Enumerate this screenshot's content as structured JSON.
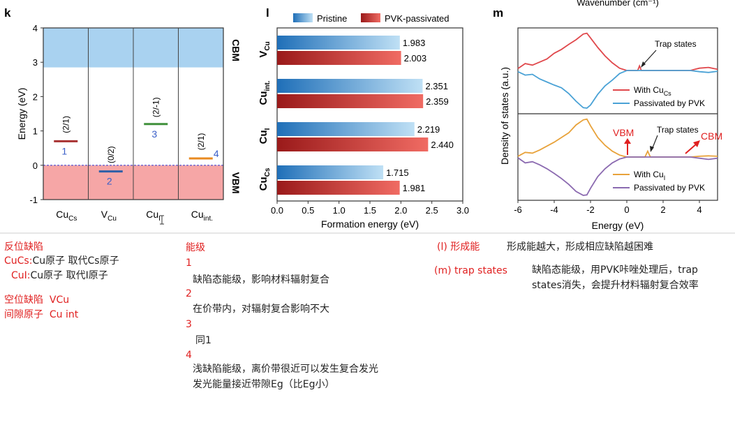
{
  "chart_data": [
    {
      "type": "energy-level-diagram",
      "panel_label": "k",
      "ylabel": "Energy (eV)",
      "ylim": [
        -1,
        4
      ],
      "yticks": [
        "-1",
        "0",
        "1",
        "2",
        "3",
        "4"
      ],
      "band_labels": {
        "cbm": "CBM",
        "vbm": "VBM"
      },
      "cbm_min": 2.85,
      "vbm_max": 0,
      "columns": [
        {
          "label_main": "Cu",
          "label_sub": "Cs",
          "level": 0.7,
          "transition": "(2/1)",
          "color": "#a83232",
          "annotation": "1"
        },
        {
          "label_main": "V",
          "label_sub": "Cu",
          "level": -0.18,
          "transition": "(0/2)",
          "color": "#2f5fa8",
          "annotation": "2"
        },
        {
          "label_main": "Cu",
          "label_sub": "I",
          "level": 1.2,
          "transition": "(2/-1)",
          "color": "#3f8f3a",
          "annotation": "3"
        },
        {
          "label_main": "Cu",
          "label_sub": "int.",
          "level": 0.2,
          "transition": "(2/1)",
          "color": "#e88a20",
          "annotation": "4"
        }
      ]
    },
    {
      "type": "bar",
      "panel_label": "l",
      "orientation": "horizontal",
      "xlabel": "Formation energy (eV)",
      "xlim": [
        0,
        3.0
      ],
      "xticks": [
        "0.0",
        "0.5",
        "1.0",
        "1.5",
        "2.0",
        "2.5",
        "3.0"
      ],
      "categories": [
        {
          "main": "V",
          "sub": "Cu"
        },
        {
          "main": "Cu",
          "sub": "int."
        },
        {
          "main": "Cu",
          "sub": "I"
        },
        {
          "main": "Cu",
          "sub": "Cs"
        }
      ],
      "series": [
        {
          "name": "Pristine",
          "values": [
            1.983,
            2.351,
            2.219,
            1.715
          ],
          "labels": [
            "1.983",
            "2.351",
            "2.219",
            "1.715"
          ],
          "color": "#3b8fd0"
        },
        {
          "name": "PVK-passivated",
          "values": [
            2.003,
            2.359,
            2.44,
            1.981
          ],
          "labels": [
            "2.003",
            "2.359",
            "2.440",
            "1.981"
          ],
          "color": "#d9403a"
        }
      ]
    },
    {
      "type": "line",
      "panel_label": "m",
      "top_axis_label": "Wavenumber (cm⁻¹)",
      "xlabel": "Energy (eV)",
      "ylabel": "Density of states (a.u.)",
      "xlim": [
        -6,
        5
      ],
      "xticks": [
        "-6",
        "-4",
        "-2",
        "0",
        "2",
        "4"
      ],
      "subplots": [
        {
          "annotation": "Trap states",
          "series": [
            {
              "name_main": "With Cu",
              "name_sub": "Cs",
              "color": "#e0484c",
              "x": [
                -6,
                -5.6,
                -5.2,
                -4.8,
                -4.4,
                -4.0,
                -3.6,
                -3.2,
                -2.8,
                -2.4,
                -2.2,
                -2.0,
                -1.6,
                -1.2,
                -0.8,
                -0.4,
                0.0,
                0.6,
                0.7,
                0.8,
                1.5,
                2.5,
                3.5,
                4.0,
                4.5,
                4.8,
                5.0
              ],
              "y": [
                0.05,
                0.18,
                0.14,
                0.22,
                0.3,
                0.45,
                0.55,
                0.68,
                0.8,
                0.95,
                0.97,
                0.85,
                0.6,
                0.38,
                0.2,
                0.06,
                0.0,
                0.0,
                0.12,
                0.0,
                0.0,
                0.0,
                0.0,
                0.06,
                0.08,
                0.05,
                0.03
              ]
            },
            {
              "name": "Passivated by PVK",
              "color": "#4aa2d6",
              "x": [
                -6,
                -5.6,
                -5.2,
                -4.8,
                -4.4,
                -4.0,
                -3.6,
                -3.2,
                -2.8,
                -2.4,
                -2.2,
                -2.0,
                -1.6,
                -1.2,
                -0.8,
                -0.4,
                0.0,
                1.5,
                2.5,
                3.5,
                4.0,
                4.5,
                5.0
              ],
              "y": [
                -0.03,
                -0.12,
                -0.1,
                -0.22,
                -0.3,
                -0.38,
                -0.45,
                -0.6,
                -0.8,
                -0.97,
                -0.98,
                -0.9,
                -0.62,
                -0.4,
                -0.25,
                -0.08,
                0.0,
                0.0,
                0.0,
                0.0,
                -0.03,
                -0.05,
                -0.02
              ]
            }
          ]
        },
        {
          "annotation": "Trap states",
          "markers": [
            "VBM",
            "CBM"
          ],
          "series": [
            {
              "name_main": "With Cu",
              "name_sub": "I",
              "color": "#e8a23a",
              "x": [
                -6,
                -5.6,
                -5.2,
                -4.8,
                -4.4,
                -4.0,
                -3.6,
                -3.2,
                -2.8,
                -2.4,
                -2.2,
                -2.0,
                -1.6,
                -1.2,
                -0.8,
                -0.4,
                0.0,
                1.0,
                1.15,
                1.3,
                2.5,
                3.5,
                4.0,
                4.5,
                5.0
              ],
              "y": [
                0.02,
                0.12,
                0.1,
                0.18,
                0.28,
                0.38,
                0.5,
                0.62,
                0.82,
                0.95,
                0.97,
                0.8,
                0.5,
                0.3,
                0.15,
                0.05,
                0.0,
                0.0,
                0.15,
                0.0,
                0.0,
                0.0,
                0.02,
                0.03,
                0.02
              ]
            },
            {
              "name": "Passivated by PVK",
              "color": "#8b6ab0",
              "x": [
                -6,
                -5.6,
                -5.2,
                -4.8,
                -4.4,
                -4.0,
                -3.6,
                -3.2,
                -2.8,
                -2.4,
                -2.2,
                -2.0,
                -1.6,
                -1.2,
                -0.8,
                -0.4,
                0.0,
                1.5,
                2.5,
                3.5,
                4.0,
                4.5,
                5.0
              ],
              "y": [
                -0.02,
                -0.15,
                -0.12,
                -0.2,
                -0.3,
                -0.42,
                -0.55,
                -0.7,
                -0.88,
                -0.98,
                -0.97,
                -0.8,
                -0.5,
                -0.3,
                -0.15,
                -0.05,
                0.0,
                0.0,
                0.0,
                0.0,
                -0.03,
                -0.06,
                -0.03
              ]
            }
          ]
        }
      ]
    }
  ],
  "notes": {
    "col1": {
      "antisite_title": "反位缺陷",
      "cucs_label": "CuCs:",
      "cucs_text": "Cu原子 取代Cs原子",
      "cui_label": "CuI:",
      "cui_text": "Cu原子 取代I原子",
      "vacancy_label": "空位缺陷",
      "vacancy_value": "VCu",
      "interstitial_label": "间隙原子",
      "interstitial_value": "Cu int"
    },
    "col2": {
      "title": "能级",
      "n1": "1",
      "t1": "缺陷态能级，影响材料辐射复合",
      "n2": "2",
      "t2": "在价带内，对辐射复合影响不大",
      "n3": "3",
      "t3": "同1",
      "n4": "4",
      "t4a": "浅缺陷能级，离价带很近可以发生复合发光",
      "t4b": "发光能量接近带隙Eg（比Eg小）"
    },
    "col3": {
      "l_label": "(l)  形成能",
      "l_text": "形成能越大，形成相应缺陷越困难",
      "m_label": "(m)   trap states",
      "m_text_a": "缺陷态能级，用PVK咔唑处理后，trap",
      "m_text_b": "states消失，会提升材料辐射复合效率"
    }
  }
}
